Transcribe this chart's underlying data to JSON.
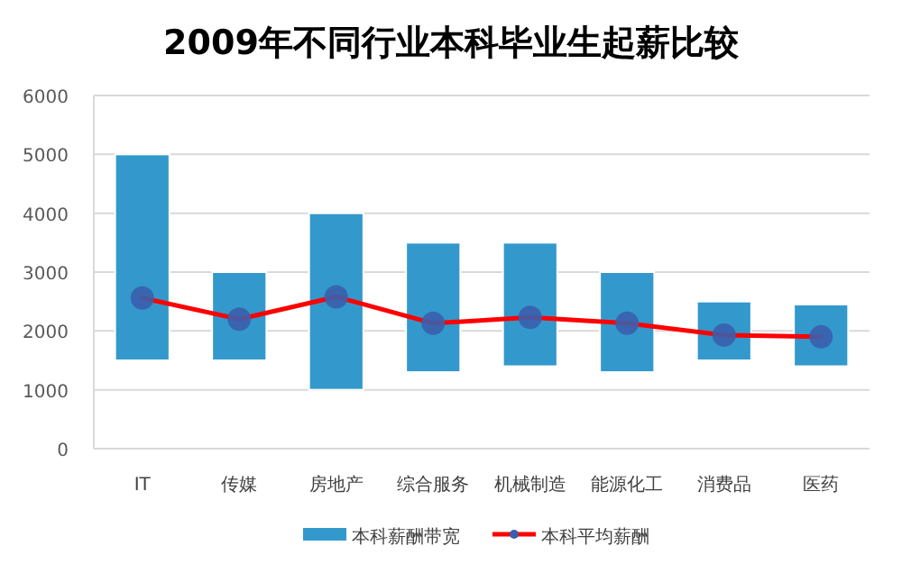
{
  "chart_data": {
    "type": "bar",
    "title": "2009年不同行业本科毕业生起薪比较",
    "categories": [
      "IT",
      "传媒",
      "房地产",
      "综合服务",
      "机械制造",
      "能源化工",
      "消费品",
      "医药"
    ],
    "series": [
      {
        "name": "本科薪酬带宽",
        "color": "#3399cc",
        "base": [
          1500,
          1500,
          1000,
          1300,
          1400,
          1300,
          1500,
          1400
        ],
        "values": [
          3500,
          1500,
          3000,
          2200,
          2100,
          1700,
          1000,
          1050
        ]
      },
      {
        "name": "本科平均薪酬",
        "type": "line",
        "color": "#ff0000",
        "marker": "circle",
        "values": [
          2560,
          2200,
          2580,
          2130,
          2230,
          2130,
          1930,
          1900
        ]
      }
    ],
    "ylim": [
      0,
      6000
    ],
    "yticks": [
      0,
      1000,
      2000,
      3000,
      4000,
      5000,
      6000
    ],
    "grid": "y",
    "legend": "bottom"
  }
}
